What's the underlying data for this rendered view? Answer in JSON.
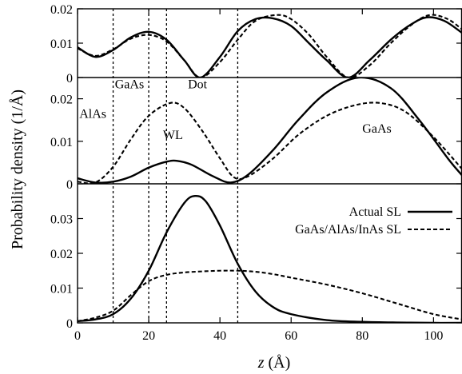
{
  "chart_data": {
    "type": "line",
    "title": "",
    "xlabel_var": "z",
    "xlabel_unit": " (Å)",
    "ylabel": "Probability density (1/Å)",
    "xlim": [
      0,
      108
    ],
    "xticks": [
      "0",
      "20",
      "40",
      "60",
      "80",
      "100"
    ],
    "xtick_values": [
      0,
      20,
      40,
      60,
      80,
      100
    ],
    "boundaries": [
      10,
      20,
      25,
      45
    ],
    "grid": false,
    "legend": {
      "location": "right, inside bottom panel",
      "entries": [
        {
          "label": "Actual SL",
          "style": "solid"
        },
        {
          "label": "GaAs/AlAs/InAs SL",
          "style": "dashed"
        }
      ]
    },
    "panels": [
      {
        "id": "top",
        "ylim": [
          0,
          0.02
        ],
        "yticks": [
          "0",
          "0.01",
          "0.02"
        ],
        "ytick_values": [
          0,
          0.01,
          0.02
        ],
        "region_labels": [],
        "series": [
          {
            "style": "solid",
            "x": [
              0,
              5,
              10,
              15,
              20,
              25,
              30,
              34.5,
              40,
              45,
              50,
              55,
              60,
              65,
              70,
              76,
              82,
              88,
              93,
              98,
              103,
              108
            ],
            "y": [
              0.0088,
              0.006,
              0.008,
              0.0117,
              0.0133,
              0.011,
              0.005,
              0.0,
              0.006,
              0.0135,
              0.017,
              0.0172,
              0.015,
              0.01,
              0.005,
              0.0,
              0.005,
              0.011,
              0.015,
              0.0175,
              0.0165,
              0.013
            ]
          },
          {
            "style": "dashed",
            "x": [
              0,
              5,
              10,
              15,
              20,
              25,
              30,
              34.5,
              40,
              45,
              50,
              56,
              60,
              65,
              70,
              76,
              82,
              88,
              94,
              99,
              104,
              108
            ],
            "y": [
              0.0085,
              0.0063,
              0.0082,
              0.0113,
              0.0124,
              0.0105,
              0.005,
              0.0,
              0.0045,
              0.011,
              0.0165,
              0.0182,
              0.017,
              0.0125,
              0.006,
              0.0,
              0.0035,
              0.01,
              0.0155,
              0.0182,
              0.017,
              0.014
            ]
          }
        ]
      },
      {
        "id": "middle",
        "ylim": [
          0,
          0.025
        ],
        "yticks": [
          "0",
          "0.01",
          "0.02"
        ],
        "ytick_values": [
          0,
          0.01,
          0.02
        ],
        "region_labels": [
          {
            "text": "AlAs",
            "x": 0.5,
            "y": 0.0155
          },
          {
            "text": "GaAs",
            "x": 10.5,
            "y": 0.0225
          },
          {
            "text": "Dot",
            "x": 31,
            "y": 0.0225
          },
          {
            "text": "WL",
            "x": 24,
            "y": 0.0105
          },
          {
            "text": "GaAs",
            "x": 80,
            "y": 0.012
          }
        ],
        "series": [
          {
            "style": "solid",
            "x": [
              0,
              5,
              10,
              15,
              20,
              25,
              28,
              32,
              38,
              43,
              48,
              55,
              62,
              70,
              79,
              88,
              96,
              104,
              108
            ],
            "y": [
              0.0013,
              0.0003,
              0.0005,
              0.0017,
              0.0038,
              0.0052,
              0.0054,
              0.0045,
              0.0018,
              0.0003,
              0.0022,
              0.008,
              0.015,
              0.0215,
              0.025,
              0.0225,
              0.015,
              0.006,
              0.002
            ]
          },
          {
            "style": "dashed",
            "x": [
              0,
              5,
              10,
              15,
              20,
              26,
              30,
              35,
              40,
              44,
              48,
              55,
              62,
              70,
              78,
              85,
              92,
              100,
              108
            ],
            "y": [
              0.0005,
              0.0003,
              0.004,
              0.0105,
              0.016,
              0.019,
              0.0178,
              0.0125,
              0.006,
              0.0015,
              0.0018,
              0.006,
              0.0115,
              0.016,
              0.0185,
              0.019,
              0.017,
              0.011,
              0.0035
            ]
          }
        ]
      },
      {
        "id": "bottom",
        "ylim": [
          0,
          0.04
        ],
        "yticks": [
          "0",
          "0.01",
          "0.02",
          "0.03"
        ],
        "ytick_values": [
          0,
          0.01,
          0.02,
          0.03
        ],
        "region_labels": [],
        "series": [
          {
            "style": "solid",
            "x": [
              0,
              5,
              10,
              15,
              20,
              25,
              30,
              33,
              36,
              40,
              45,
              50,
              55,
              60,
              70,
              80,
              90,
              100,
              108
            ],
            "y": [
              0.0005,
              0.001,
              0.0025,
              0.007,
              0.015,
              0.026,
              0.0345,
              0.0365,
              0.035,
              0.028,
              0.017,
              0.009,
              0.0045,
              0.0025,
              0.0008,
              0.0003,
              0.0001,
              0.0,
              0.0
            ]
          },
          {
            "style": "dashed",
            "x": [
              0,
              5,
              10,
              15,
              20,
              25,
              30,
              35,
              40,
              45,
              50,
              55,
              60,
              70,
              80,
              90,
              100,
              108
            ],
            "y": [
              0.0005,
              0.0015,
              0.0035,
              0.008,
              0.012,
              0.0138,
              0.0145,
              0.0148,
              0.015,
              0.015,
              0.0147,
              0.014,
              0.013,
              0.011,
              0.0085,
              0.0055,
              0.0025,
              0.001
            ]
          }
        ]
      }
    ]
  }
}
